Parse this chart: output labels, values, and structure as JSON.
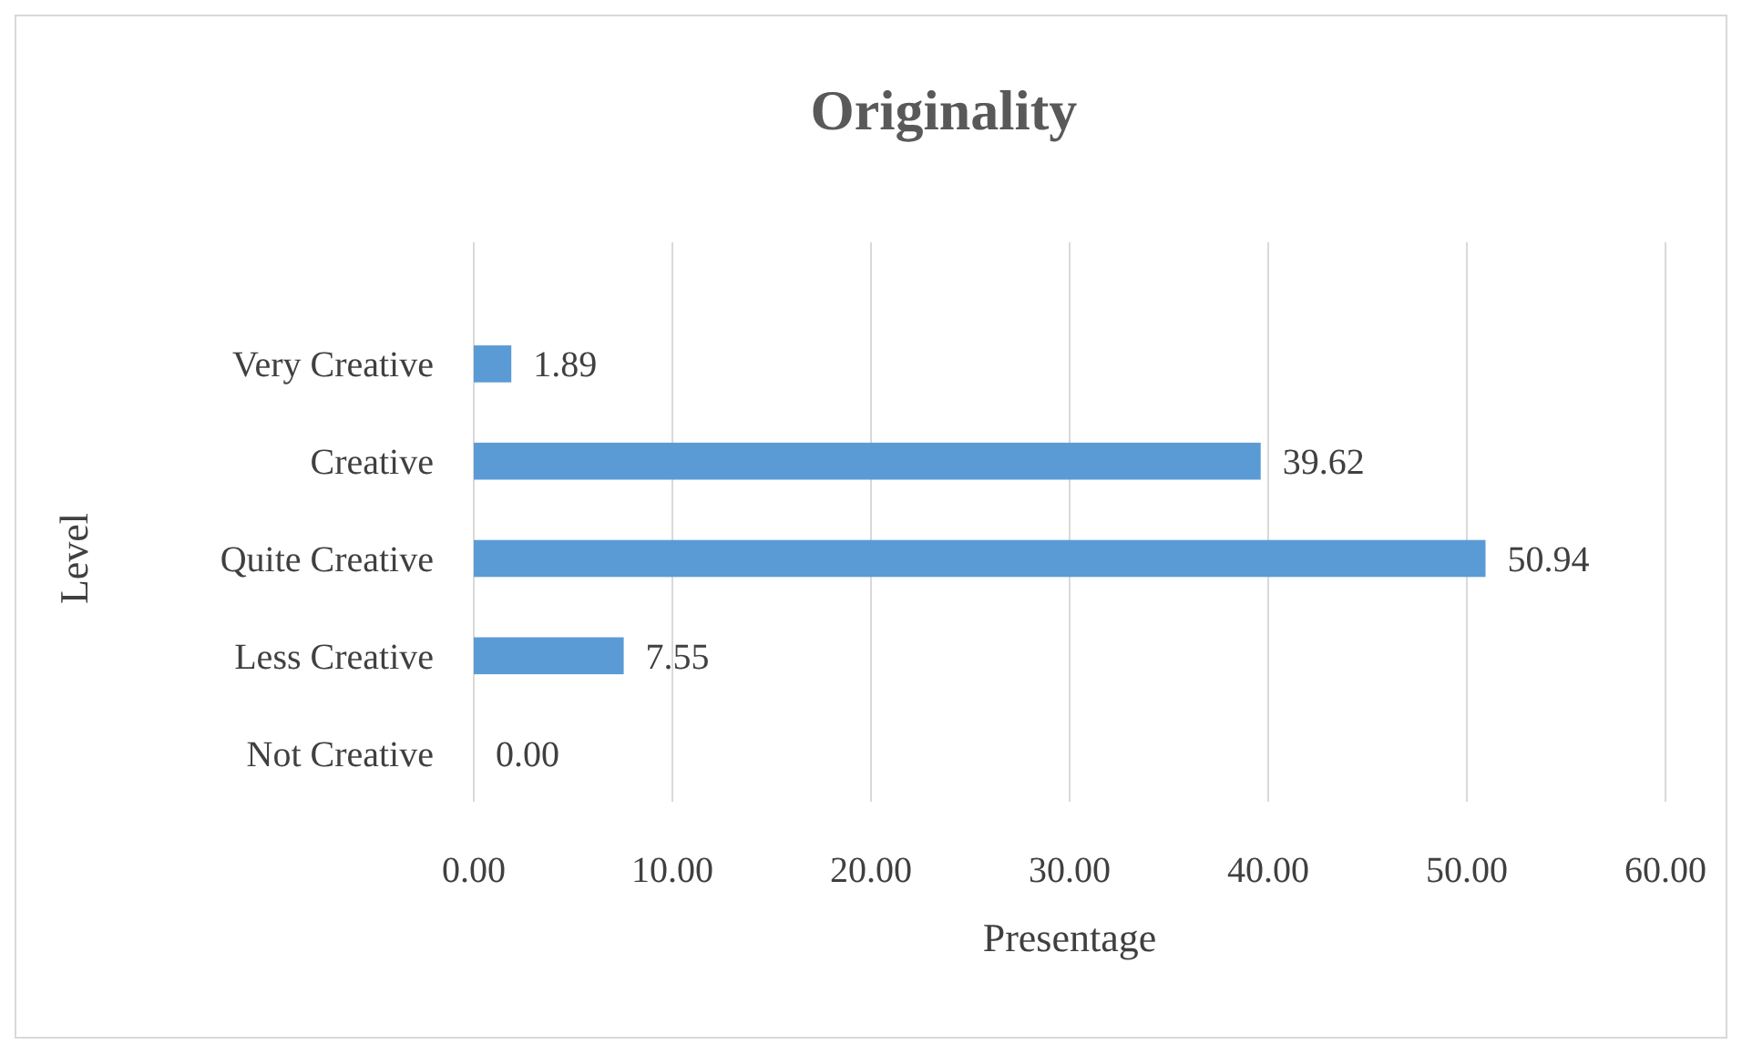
{
  "chart_data": {
    "type": "bar",
    "orientation": "horizontal",
    "title": "Originality",
    "xlabel": "Presentage",
    "ylabel": "Level",
    "categories": [
      "Very Creative",
      "Creative",
      "Quite Creative",
      "Less Creative",
      "Not Creative"
    ],
    "values": [
      1.89,
      39.62,
      50.94,
      7.55,
      0
    ],
    "value_labels": [
      "1.89",
      "39.62",
      "50.94",
      "7.55",
      "0.00"
    ],
    "color": "#5b9bd5",
    "xlim": [
      0,
      60
    ],
    "xticks": [
      {
        "value": 0,
        "label": "0.00"
      },
      {
        "value": 10,
        "label": "10.00"
      },
      {
        "value": 20,
        "label": "20.00"
      },
      {
        "value": 30,
        "label": "30.00"
      },
      {
        "value": 40,
        "label": "40.00"
      },
      {
        "value": 50,
        "label": "50.00"
      },
      {
        "value": 60,
        "label": "60.00"
      }
    ],
    "grid": "x"
  }
}
